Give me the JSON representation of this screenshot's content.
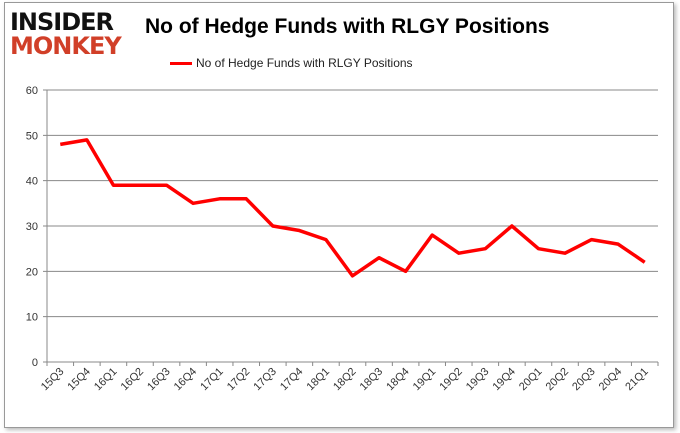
{
  "logo": {
    "line1": "INSIDER",
    "line2": "MONKEY"
  },
  "chart_data": {
    "type": "line",
    "title": "No of Hedge Funds with RLGY Positions",
    "categories": [
      "15Q3",
      "15Q4",
      "16Q1",
      "16Q2",
      "16Q3",
      "16Q4",
      "17Q1",
      "17Q2",
      "17Q3",
      "17Q4",
      "18Q1",
      "18Q2",
      "18Q3",
      "18Q4",
      "19Q1",
      "19Q2",
      "19Q3",
      "19Q4",
      "20Q1",
      "20Q2",
      "20Q3",
      "20Q4",
      "21Q1"
    ],
    "series": [
      {
        "name": "No of Hedge Funds with RLGY Positions",
        "color": "#ff0000",
        "values": [
          48,
          49,
          39,
          39,
          39,
          35,
          36,
          36,
          30,
          29,
          27,
          19,
          23,
          20,
          28,
          24,
          25,
          30,
          25,
          24,
          27,
          26,
          22
        ]
      }
    ],
    "yticks": [
      0,
      10,
      20,
      30,
      40,
      50,
      60
    ],
    "ylim": [
      0,
      60
    ],
    "xlabel": "",
    "ylabel": "",
    "grid": true,
    "legend": "top-center"
  }
}
